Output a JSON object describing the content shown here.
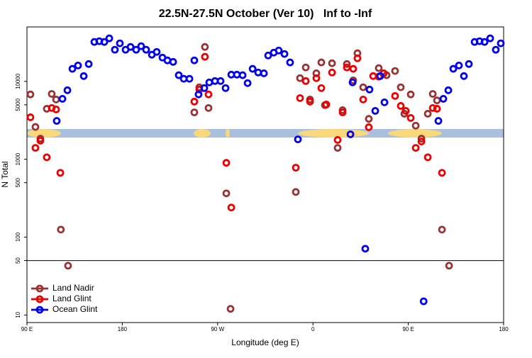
{
  "chart_data": {
    "type": "scatter",
    "title": "22.5N-27.5N October (Ver 10)   Inf to -Inf",
    "xlabel": "Longitude (deg E)",
    "ylabel": "N Total",
    "xlim": [
      90,
      540
    ],
    "xticks": [
      {
        "value": 90,
        "label": "90 E"
      },
      180,
      {
        "value": 270,
        "label": "90 W"
      },
      {
        "value": 360,
        "label": "0"
      },
      {
        "value": 450,
        "label": "90 E"
      },
      {
        "value": 540,
        "label": "180"
      }
    ],
    "ylim": [
      8,
      50000
    ],
    "yscale": "log",
    "yticks": [
      10,
      50,
      100,
      500,
      1000,
      5000,
      10000
    ],
    "reference_line": 50,
    "legend": "lower left",
    "series": [
      {
        "name": "Land Nadir",
        "color": "#993333",
        "x": [
          93.3,
          98,
          102.7,
          108.7,
          113.4,
          117.5,
          122,
          128.8,
          248,
          252.7,
          258,
          261.4,
          278.2,
          282.2,
          343.8,
          347.8,
          353.2,
          357.2,
          363.2,
          367.9,
          371.3,
          378,
          383.3,
          388,
          392,
          398,
          402,
          407.4,
          412.7,
          422.1,
          429.5,
          437.5,
          442.9,
          446.3,
          452.3,
          457,
          462.4,
          468.4,
          473.1,
          477.1,
          481.8,
          488.5
        ],
        "values": [
          6800,
          2600,
          1840,
          4450,
          6900,
          5850,
          125,
          43,
          4000,
          8400,
          27700,
          4550,
          365,
          12,
          380,
          11000,
          15100,
          5850,
          12700,
          17500,
          4950,
          17100,
          1400,
          4270,
          16700,
          10300,
          23000,
          8400,
          3300,
          14800,
          12000,
          13600,
          8400,
          3840,
          6800,
          2700,
          1840,
          3840,
          6900,
          5700,
          125,
          43
        ]
      },
      {
        "name": "Land Glint",
        "color": "#ee0000",
        "x": [
          93.3,
          98,
          102.7,
          108.7,
          113.4,
          117.5,
          121.5,
          248,
          252.7,
          258,
          261.4,
          278.2,
          282.9,
          343.8,
          347.8,
          353.2,
          357.2,
          363.2,
          367.9,
          372.6,
          378,
          383.3,
          388,
          392,
          398,
          402,
          407.4,
          412.7,
          416.8,
          422.1,
          426.8,
          437.5,
          442.9,
          447.6,
          452.3,
          457,
          462.4,
          468.4,
          473.1,
          477.1,
          481.8
        ],
        "values": [
          3460,
          1400,
          1730,
          1060,
          4550,
          4360,
          670,
          5500,
          7850,
          20700,
          6800,
          900,
          240,
          780,
          6100,
          10100,
          5500,
          11000,
          8200,
          5050,
          13000,
          1770,
          4000,
          15100,
          14500,
          19800,
          5850,
          2580,
          11700,
          11500,
          12700,
          6500,
          4840,
          4180,
          3390,
          1400,
          1690,
          1060,
          4550,
          4450,
          670
        ]
      },
      {
        "name": "Ocean Glint",
        "color": "#0000ee",
        "x": [
          118.1,
          123.5,
          128.2,
          132.9,
          138.2,
          143.6,
          148.3,
          153.6,
          158.3,
          163,
          167.7,
          173,
          177.7,
          183.1,
          187.8,
          193.1,
          197.8,
          202.5,
          207.9,
          212.5,
          217.9,
          222.6,
          228,
          233.3,
          238,
          243.4,
          248,
          252,
          257.4,
          262.1,
          267.5,
          272.8,
          277.5,
          282.9,
          288.2,
          293.6,
          298.3,
          303,
          308.3,
          313.7,
          317.7,
          323,
          327.7,
          333.1,
          338.4,
          345.8,
          395.4,
          397.4,
          409.4,
          413.4,
          418.8,
          423.5,
          427.5,
          464.5,
          478.4,
          483.1,
          487.8,
          492.5,
          497.8,
          502.5,
          507.2,
          512.6,
          517.3,
          522,
          527.3,
          532.6,
          537.3
        ],
        "values": [
          3110,
          5970,
          7690,
          14500,
          16000,
          11700,
          16700,
          32100,
          32800,
          32100,
          35700,
          25500,
          30800,
          25500,
          27700,
          25500,
          28300,
          25500,
          22000,
          23900,
          20200,
          18600,
          17800,
          12000,
          10800,
          10800,
          18600,
          6800,
          8200,
          9700,
          10100,
          10100,
          8200,
          12200,
          12200,
          12000,
          9500,
          14500,
          13000,
          12700,
          21500,
          23400,
          24900,
          22500,
          17500,
          1800,
          2090,
          9700,
          71,
          7850,
          4180,
          11700,
          5380,
          15,
          3110,
          5970,
          7690,
          14500,
          16000,
          11700,
          16700,
          32100,
          32800,
          32100,
          35700,
          25500,
          30800
        ]
      }
    ]
  }
}
